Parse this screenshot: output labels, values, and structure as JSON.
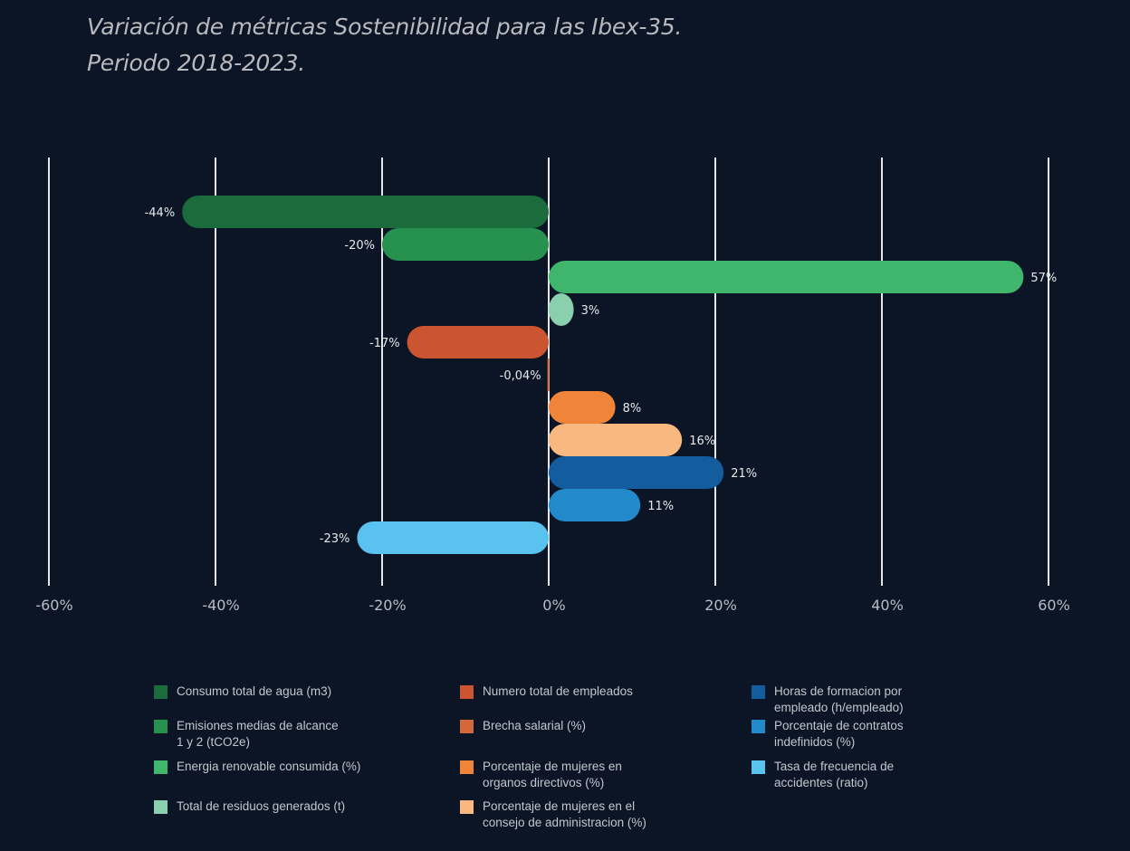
{
  "chart_data": {
    "type": "bar",
    "orientation": "horizontal",
    "title": "Variación de métricas Sostenibilidad para las Ibex-35.",
    "subtitle": "Periodo 2018-2023.",
    "xlabel": "",
    "ylabel": "",
    "xlim": [
      -60,
      60
    ],
    "x_ticks": [
      -60,
      -40,
      -20,
      0,
      20,
      40,
      60
    ],
    "x_tick_labels": [
      "-60%",
      "-40%",
      "-20%",
      "0%",
      "20%",
      "40%",
      "60%"
    ],
    "grid": true,
    "legend_position": "bottom",
    "series": [
      {
        "name": "Consumo total de agua (m3)",
        "value": -44,
        "label": "-44%",
        "color": "#1b6b3c"
      },
      {
        "name": "Emisiones medias de alcance\n1 y 2 (tCO2e)",
        "value": -20,
        "label": "-20%",
        "color": "#27924f"
      },
      {
        "name": "Energia renovable consumida (%)",
        "value": 57,
        "label": "57%",
        "color": "#40b56c"
      },
      {
        "name": "Total de residuos generados (t)",
        "value": 3,
        "label": "3%",
        "color": "#8acfae"
      },
      {
        "name": "Numero total de empleados",
        "value": -17,
        "label": "-17%",
        "color": "#cb5431"
      },
      {
        "name": "Brecha salarial (%)",
        "value": -0.04,
        "label": "-0,04%",
        "color": "#d4683b"
      },
      {
        "name": "Porcentaje de mujeres en\norganos directivos (%)",
        "value": 8,
        "label": "8%",
        "color": "#f08438"
      },
      {
        "name": "Porcentaje de mujeres en el\nconsejo de administracion (%)",
        "value": 16,
        "label": "16%",
        "color": "#f8b880"
      },
      {
        "name": "Horas de formacion por\nempleado (h/empleado)",
        "value": 21,
        "label": "21%",
        "color": "#135c9d"
      },
      {
        "name": "Porcentaje de contratos\nindefinidos (%)",
        "value": 11,
        "label": "11%",
        "color": "#228acb"
      },
      {
        "name": "Tasa de frecuencia de\naccidentes (ratio)",
        "value": -23,
        "label": "-23%",
        "color": "#59c2ee"
      }
    ]
  },
  "colors": {
    "background": "#0b1526",
    "gridline": "#e6e6e6",
    "title": "#b9b9bd"
  }
}
